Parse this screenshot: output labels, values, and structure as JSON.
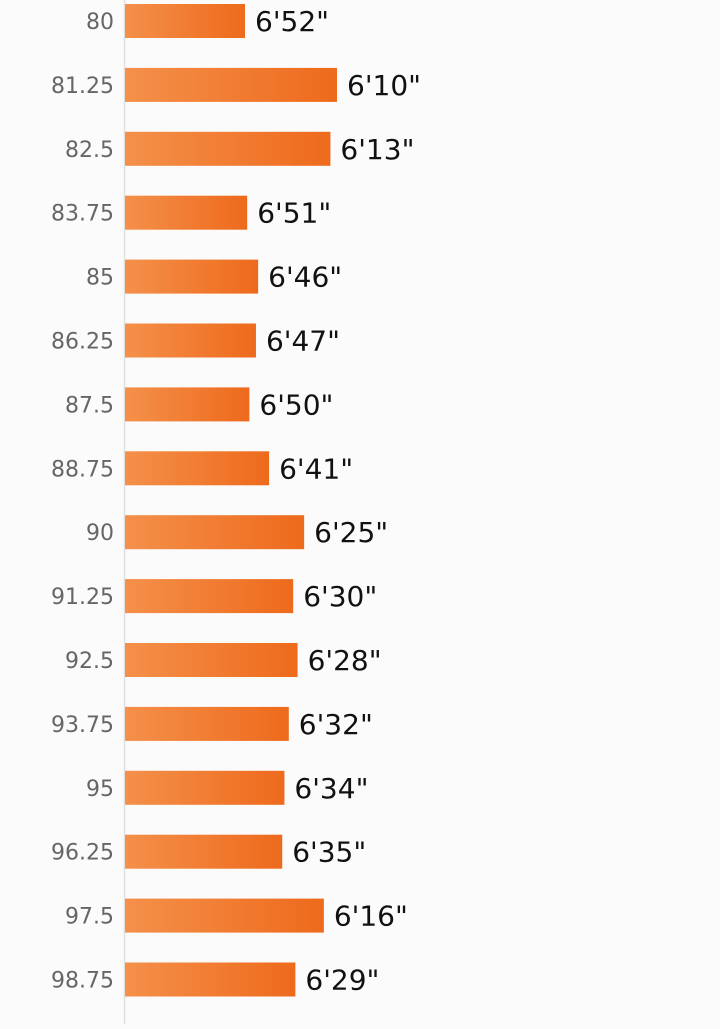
{
  "chart_data": {
    "type": "bar",
    "orientation": "horizontal",
    "categories": [
      "80",
      "81.25",
      "82.5",
      "83.75",
      "85",
      "86.25",
      "87.5",
      "88.75",
      "90",
      "91.25",
      "92.5",
      "93.75",
      "95",
      "96.25",
      "97.5",
      "98.75"
    ],
    "labels": [
      "6'52\"",
      "6'10\"",
      "6'13\"",
      "6'51\"",
      "6'46\"",
      "6'47\"",
      "6'50\"",
      "6'41\"",
      "6'25\"",
      "6'30\"",
      "6'28\"",
      "6'32\"",
      "6'34\"",
      "6'35\"",
      "6'16\"",
      "6'29\""
    ],
    "values": [
      412,
      370,
      373,
      411,
      406,
      407,
      410,
      401,
      385,
      390,
      388,
      392,
      394,
      395,
      376,
      389
    ],
    "unit": "seconds",
    "title": "",
    "xlabel": "",
    "ylabel": "",
    "colors": {
      "bar_start": "#f4904a",
      "bar_end": "#ee6a1c",
      "axis": "#e0e0e0",
      "category_text": "#666666",
      "value_text": "#111111",
      "background": "#fbfbfb"
    },
    "grid": false,
    "legend": "none"
  }
}
